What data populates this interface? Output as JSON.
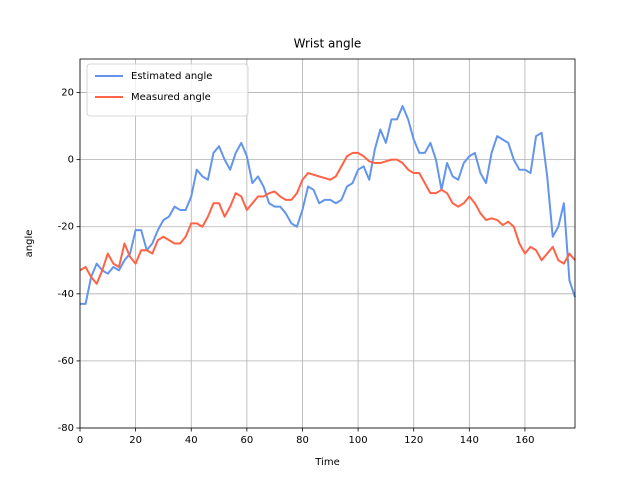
{
  "chart_data": {
    "type": "line",
    "title": "Wrist angle",
    "xlabel": "Time",
    "ylabel": "angle",
    "x": [
      0,
      2,
      4,
      6,
      8,
      10,
      12,
      14,
      16,
      18,
      20,
      22,
      24,
      26,
      28,
      30,
      32,
      34,
      36,
      38,
      40,
      42,
      44,
      46,
      48,
      50,
      52,
      54,
      56,
      58,
      60,
      62,
      64,
      66,
      68,
      70,
      72,
      74,
      76,
      78,
      80,
      82,
      84,
      86,
      88,
      90,
      92,
      94,
      96,
      98,
      100,
      102,
      104,
      106,
      108,
      110,
      112,
      114,
      116,
      118,
      120,
      122,
      124,
      126,
      128,
      130,
      132,
      134,
      136,
      138,
      140,
      142,
      144,
      146,
      148,
      150,
      152,
      154,
      156,
      158,
      160,
      162,
      164,
      166,
      168,
      170,
      172,
      174,
      176,
      178
    ],
    "series": [
      {
        "name": "Estimated angle",
        "color": "#6495ed",
        "values": [
          -43,
          -43,
          -35,
          -31,
          -33,
          -34,
          -32,
          -33,
          -30,
          -28,
          -21,
          -21,
          -27,
          -25,
          -21,
          -18,
          -17,
          -14,
          -15,
          -15,
          -11,
          -3,
          -5,
          -6,
          2,
          4,
          0,
          -3,
          2,
          5,
          1,
          -7,
          -5,
          -8,
          -13,
          -14,
          -14,
          -16,
          -19,
          -20,
          -15,
          -8,
          -9,
          -13,
          -12,
          -12,
          -13,
          -12,
          -8,
          -7,
          -3,
          -2,
          -6,
          3,
          9,
          5,
          12,
          12,
          16,
          12,
          6,
          2,
          2,
          5,
          0,
          -9,
          -1,
          -5,
          -6,
          -1,
          1,
          2,
          -4,
          -7,
          2,
          7,
          6,
          5,
          0,
          -3,
          -3,
          -4,
          7,
          8,
          -5,
          -23,
          -20,
          -13,
          -36,
          -41
        ]
      },
      {
        "name": "Measured angle",
        "color": "#ff6347",
        "values": [
          -33,
          -32,
          -35,
          -37,
          -33,
          -28,
          -31,
          -32,
          -25,
          -29,
          -31,
          -27,
          -27,
          -28,
          -24,
          -23,
          -24,
          -25,
          -25,
          -23,
          -19,
          -19,
          -20,
          -17,
          -13,
          -13,
          -17,
          -14,
          -10,
          -11,
          -15,
          -13,
          -11,
          -11,
          -10,
          -9.5,
          -11,
          -12,
          -12,
          -10,
          -6,
          -4,
          -4.5,
          -5,
          -5.5,
          -6,
          -5,
          -2,
          1,
          2,
          2,
          1,
          -0.5,
          -1,
          -1,
          -0.5,
          0,
          0,
          -1,
          -3,
          -4,
          -4,
          -7,
          -10,
          -10,
          -9,
          -10,
          -13,
          -14,
          -13,
          -11,
          -13,
          -16,
          -18,
          -17.5,
          -18,
          -19.5,
          -18.5,
          -20,
          -25,
          -28,
          -26,
          -27,
          -30,
          -28,
          -26,
          -30,
          -31,
          -28,
          -30
        ]
      }
    ],
    "xlim": [
      0,
      178
    ],
    "ylim": [
      -80,
      30
    ],
    "xticks": [
      0,
      20,
      40,
      60,
      80,
      100,
      120,
      140,
      160
    ],
    "yticks": [
      -80,
      -60,
      -40,
      -20,
      0,
      20
    ],
    "grid": true,
    "legend": "upper left"
  }
}
